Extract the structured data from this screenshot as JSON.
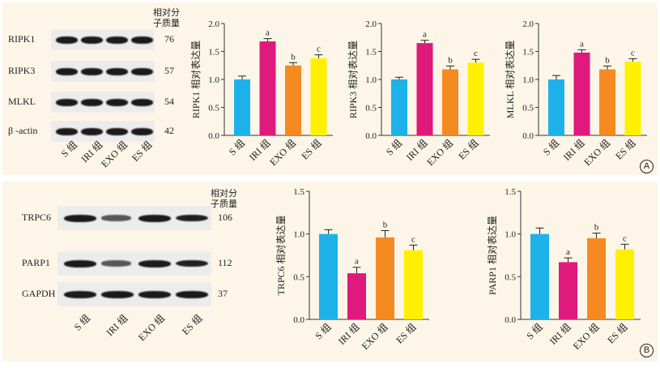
{
  "panel_a": {
    "marker": "A",
    "mw_header": [
      "相对分",
      "子质量"
    ],
    "blot_rows": [
      {
        "label": "RIPK1",
        "mw": "76",
        "intensity": [
          1.0,
          1.0,
          1.0,
          1.0
        ]
      },
      {
        "label": "RIPK3",
        "mw": "57",
        "intensity": [
          1.0,
          1.0,
          1.0,
          1.0
        ]
      },
      {
        "label": "MLKL",
        "mw": "54",
        "intensity": [
          1.0,
          1.0,
          1.0,
          1.0
        ]
      },
      {
        "label": "β -actin",
        "mw": "42",
        "intensity": [
          1.0,
          1.0,
          1.0,
          1.0
        ]
      }
    ],
    "lane_labels": [
      "S 组",
      "IRI 组",
      "EXO 组",
      "ES 组"
    ]
  },
  "panel_b": {
    "marker": "B",
    "mw_header": [
      "相对分",
      "子质量"
    ],
    "blot_rows": [
      {
        "label": "TRPC6",
        "mw": "106",
        "intensity": [
          1.0,
          0.55,
          1.0,
          0.95
        ]
      },
      {
        "label": "PARP1",
        "mw": "112",
        "intensity": [
          1.0,
          0.55,
          1.0,
          0.95
        ]
      },
      {
        "label": "GAPDH",
        "mw": "37",
        "intensity": [
          1.0,
          1.0,
          1.0,
          1.0
        ]
      }
    ],
    "lane_labels": [
      "S 组",
      "IRI 组",
      "EXO 组",
      "ES 组"
    ]
  },
  "colors": [
    "#1eb2ea",
    "#e0197d",
    "#f58a20",
    "#fff000"
  ],
  "chart_data": [
    {
      "type": "bar",
      "ylabel": "RIPK1 相对表达量",
      "categories": [
        "S 组",
        "IRI 组",
        "EXO 组",
        "ES 组"
      ],
      "values": [
        1.0,
        1.68,
        1.25,
        1.38
      ],
      "errors": [
        0.06,
        0.05,
        0.05,
        0.06
      ],
      "labels": [
        "",
        "a",
        "b",
        "c"
      ],
      "ylim": [
        0,
        2.0
      ],
      "yticks": [
        "0.0",
        "0.5",
        "1.0",
        "1.5",
        "2.0"
      ]
    },
    {
      "type": "bar",
      "ylabel": "RIPK3 相对表达量",
      "categories": [
        "S 组",
        "IRI 组",
        "EXO 组",
        "ES 组"
      ],
      "values": [
        1.0,
        1.65,
        1.18,
        1.3
      ],
      "errors": [
        0.04,
        0.05,
        0.06,
        0.06
      ],
      "labels": [
        "",
        "a",
        "b",
        "c"
      ],
      "ylim": [
        0,
        2.0
      ],
      "yticks": [
        "0.0",
        "0.5",
        "1.0",
        "1.5",
        "2.0"
      ]
    },
    {
      "type": "bar",
      "ylabel": "MLKL 相对表达量",
      "categories": [
        "S 组",
        "IRI 组",
        "EXO 组",
        "ES 组"
      ],
      "values": [
        1.0,
        1.48,
        1.18,
        1.32
      ],
      "errors": [
        0.07,
        0.05,
        0.06,
        0.05
      ],
      "labels": [
        "",
        "a",
        "b",
        "c"
      ],
      "ylim": [
        0,
        2.0
      ],
      "yticks": [
        "0.0",
        "0.5",
        "1.0",
        "1.5",
        "2.0"
      ]
    },
    {
      "type": "bar",
      "ylabel": "TRPC6 相对表达量",
      "categories": [
        "S 组",
        "IRI 组",
        "EXO 组",
        "ES 组"
      ],
      "values": [
        1.0,
        0.54,
        0.96,
        0.81
      ],
      "errors": [
        0.05,
        0.07,
        0.08,
        0.06
      ],
      "labels": [
        "",
        "a",
        "b",
        "c"
      ],
      "ylim": [
        0,
        1.5
      ],
      "yticks": [
        "0.0",
        "0.5",
        "1.0",
        "1.5"
      ]
    },
    {
      "type": "bar",
      "ylabel": "PARP1 相对表达量",
      "categories": [
        "S 组",
        "IRI 组",
        "EXO 组",
        "ES 组"
      ],
      "values": [
        1.0,
        0.67,
        0.95,
        0.82
      ],
      "errors": [
        0.07,
        0.05,
        0.06,
        0.06
      ],
      "labels": [
        "",
        "a",
        "b",
        "c"
      ],
      "ylim": [
        0,
        1.5
      ],
      "yticks": [
        "0.0",
        "0.5",
        "1.0",
        "1.5"
      ]
    }
  ]
}
